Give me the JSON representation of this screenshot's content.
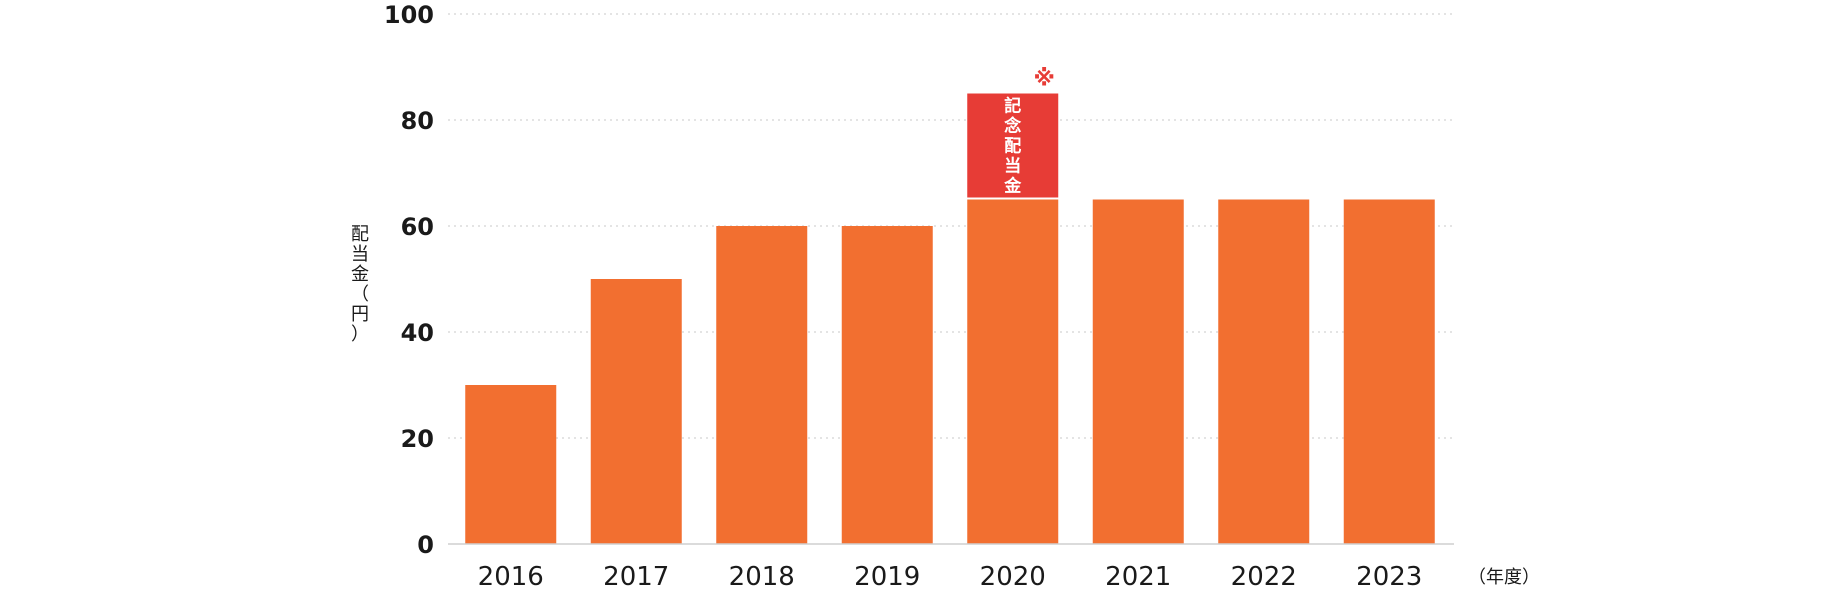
{
  "chart_data": {
    "type": "bar",
    "categories": [
      "2016",
      "2017",
      "2018",
      "2019",
      "2020",
      "2021",
      "2022",
      "2023"
    ],
    "series": [
      {
        "values": [
          30,
          50,
          60,
          60,
          65,
          65,
          65,
          65
        ]
      },
      {
        "name": "記念配当金",
        "values": [
          0,
          0,
          0,
          0,
          20,
          0,
          0,
          0
        ]
      }
    ],
    "stacked": true,
    "ylabel": "配当金（円）",
    "xlabel": "（年度）",
    "ylim": [
      0,
      100
    ],
    "yticks": [
      0,
      20,
      40,
      60,
      80,
      100
    ],
    "grid": true,
    "annotation": {
      "category": "2020",
      "text": "※"
    },
    "colors": {
      "base": "#F26F30",
      "special": "#E73C36",
      "grid": "#d4d4d4",
      "note": "#E73C36"
    }
  }
}
